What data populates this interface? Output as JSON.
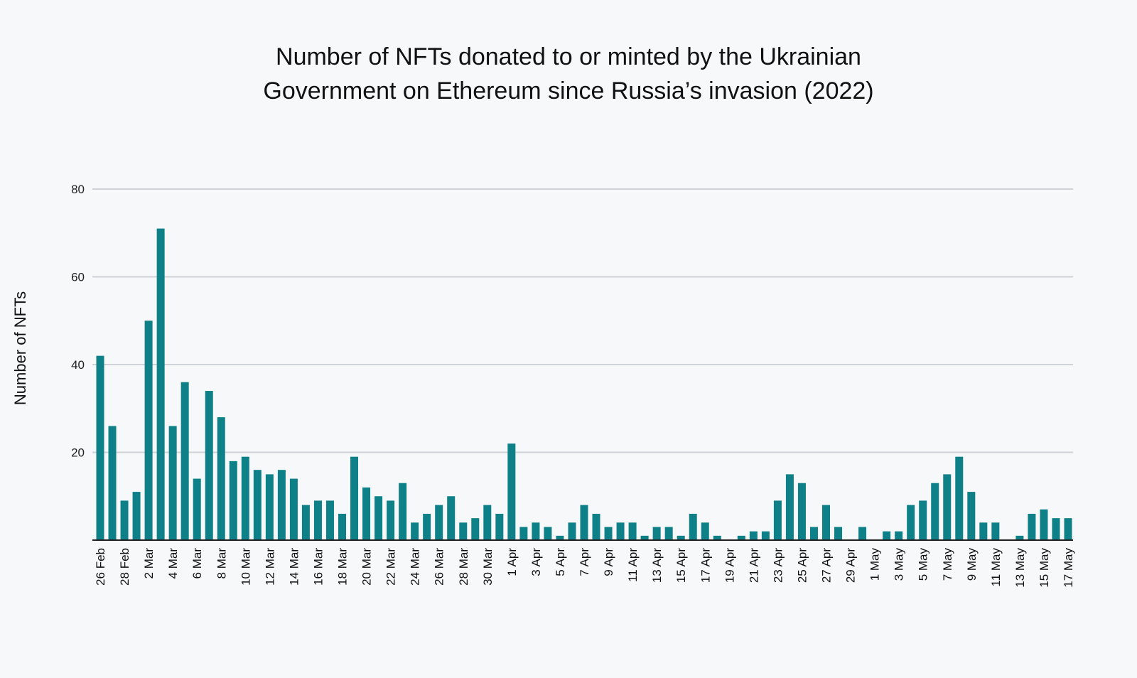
{
  "chart_data": {
    "type": "bar",
    "title_lines": [
      "Number of NFTs donated to or minted by the Ukrainian",
      "Government on Ethereum since Russia’s invasion (2022)"
    ],
    "xlabel": "",
    "ylabel": "Number of NFTs",
    "ylim": [
      0,
      80
    ],
    "yticks": [
      "20",
      "40",
      "60",
      "80"
    ],
    "grid": true,
    "bar_color": "#0e8087",
    "categories": [
      "26 Feb",
      "27 Feb",
      "28 Feb",
      "1 Mar",
      "2 Mar",
      "3 Mar",
      "4 Mar",
      "5 Mar",
      "6 Mar",
      "7 Mar",
      "8 Mar",
      "9 Mar",
      "10 Mar",
      "11 Mar",
      "12 Mar",
      "13 Mar",
      "14 Mar",
      "15 Mar",
      "16 Mar",
      "17 Mar",
      "18 Mar",
      "19 Mar",
      "20 Mar",
      "21 Mar",
      "22 Mar",
      "23 Mar",
      "24 Mar",
      "25 Mar",
      "26 Mar",
      "27 Mar",
      "28 Mar",
      "29 Mar",
      "30 Mar",
      "31 Mar",
      "1 Apr",
      "2 Apr",
      "3 Apr",
      "4 Apr",
      "5 Apr",
      "6 Apr",
      "7 Apr",
      "8 Apr",
      "9 Apr",
      "10 Apr",
      "11 Apr",
      "12 Apr",
      "13 Apr",
      "14 Apr",
      "15 Apr",
      "16 Apr",
      "17 Apr",
      "18 Apr",
      "19 Apr",
      "20 Apr",
      "21 Apr",
      "22 Apr",
      "23 Apr",
      "24 Apr",
      "25 Apr",
      "26 Apr",
      "27 Apr",
      "28 Apr",
      "29 Apr",
      "30 Apr",
      "1 May",
      "2 May",
      "3 May",
      "4 May",
      "5 May",
      "6 May",
      "7 May",
      "8 May",
      "9 May",
      "10 May",
      "11 May",
      "12 May",
      "13 May",
      "14 May",
      "15 May",
      "16 May",
      "17 May"
    ],
    "values": [
      42,
      26,
      9,
      11,
      50,
      71,
      26,
      36,
      14,
      34,
      28,
      18,
      19,
      16,
      15,
      16,
      14,
      8,
      9,
      9,
      6,
      19,
      12,
      10,
      9,
      13,
      4,
      6,
      8,
      10,
      4,
      5,
      8,
      6,
      22,
      3,
      4,
      3,
      1,
      4,
      8,
      6,
      3,
      4,
      4,
      1,
      3,
      3,
      1,
      6,
      4,
      1,
      0,
      1,
      2,
      2,
      9,
      15,
      13,
      3,
      8,
      3,
      0,
      3,
      0,
      2,
      2,
      8,
      9,
      13,
      15,
      19,
      11,
      4,
      4,
      0,
      1,
      6,
      7,
      5,
      5
    ],
    "tick_labels": [
      "26 Feb",
      "28 Feb",
      "2 Mar",
      "4 Mar",
      "6 Mar",
      "8 Mar",
      "10 Mar",
      "12 Mar",
      "14 Mar",
      "16 Mar",
      "18 Mar",
      "20 Mar",
      "22 Mar",
      "24 Mar",
      "26 Mar",
      "28 Mar",
      "30 Mar",
      "1 Apr",
      "3 Apr",
      "5 Apr",
      "7 Apr",
      "9 Apr",
      "11 Apr",
      "13 Apr",
      "15 Apr",
      "17 Apr",
      "19 Apr",
      "21 Apr",
      "23 Apr",
      "25 Apr",
      "27 Apr",
      "29 Apr",
      "1 May",
      "3 May",
      "5 May",
      "7 May",
      "9 May",
      "11 May",
      "13 May",
      "15 May",
      "17 May"
    ],
    "tick_label_category_index": [
      0,
      2,
      4,
      6,
      8,
      10,
      12,
      14,
      16,
      18,
      20,
      22,
      24,
      26,
      28,
      30,
      32,
      34,
      36,
      38,
      40,
      42,
      44,
      46,
      48,
      50,
      52,
      54,
      56,
      58,
      60,
      62,
      64,
      66,
      68,
      70,
      72,
      74,
      76,
      78,
      80
    ]
  }
}
